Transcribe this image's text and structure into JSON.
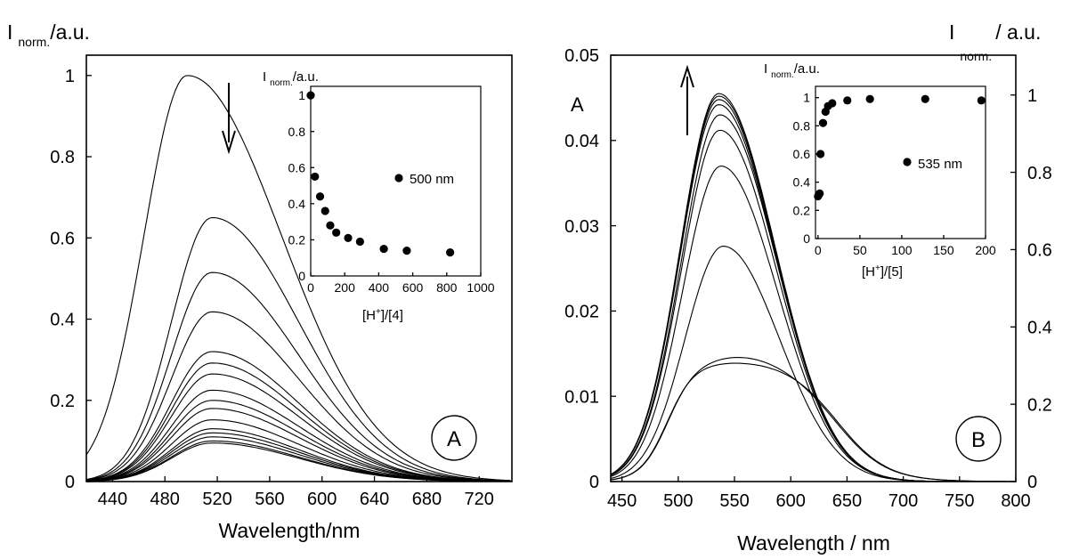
{
  "chart_data": [
    {
      "panel": "A",
      "type": "line",
      "xlabel": "Wavelength/nm",
      "ylabel_main": "I",
      "ylabel_sub": "norm.",
      "ylabel_tail": "/a.u.",
      "xlim": [
        420,
        745
      ],
      "ylim": [
        0,
        1.05
      ],
      "xticks": [
        440,
        480,
        520,
        560,
        600,
        640,
        680,
        720
      ],
      "yticks": [
        0,
        0.2,
        0.4,
        0.6,
        0.8,
        1
      ],
      "ytick_labels": [
        "0",
        "0.2",
        "0.4",
        "0.6",
        "0.8",
        "1"
      ],
      "badge": "A",
      "arrow": "down",
      "series": [
        {
          "peak": 497,
          "peak_y": 1.0,
          "left_width": 33,
          "right_width": 72
        },
        {
          "peak": 516,
          "peak_y": 0.65,
          "left_width": 31,
          "right_width": 66
        },
        {
          "peak": 516,
          "peak_y": 0.515,
          "left_width": 31,
          "right_width": 66
        },
        {
          "peak": 516,
          "peak_y": 0.418,
          "left_width": 31,
          "right_width": 66
        },
        {
          "peak": 516,
          "peak_y": 0.32,
          "left_width": 31,
          "right_width": 66
        },
        {
          "peak": 516,
          "peak_y": 0.292,
          "left_width": 31,
          "right_width": 66
        },
        {
          "peak": 516,
          "peak_y": 0.265,
          "left_width": 31,
          "right_width": 66
        },
        {
          "peak": 516,
          "peak_y": 0.225,
          "left_width": 31,
          "right_width": 66
        },
        {
          "peak": 516,
          "peak_y": 0.2,
          "left_width": 31,
          "right_width": 66
        },
        {
          "peak": 516,
          "peak_y": 0.18,
          "left_width": 31,
          "right_width": 66
        },
        {
          "peak": 516,
          "peak_y": 0.152,
          "left_width": 31,
          "right_width": 66
        },
        {
          "peak": 516,
          "peak_y": 0.13,
          "left_width": 31,
          "right_width": 66
        },
        {
          "peak": 516,
          "peak_y": 0.12,
          "left_width": 31,
          "right_width": 66
        },
        {
          "peak": 516,
          "peak_y": 0.11,
          "left_width": 31,
          "right_width": 66
        },
        {
          "peak": 516,
          "peak_y": 0.1,
          "left_width": 31,
          "right_width": 66
        },
        {
          "peak": 516,
          "peak_y": 0.095,
          "left_width": 31,
          "right_width": 66
        }
      ],
      "inset": {
        "type": "scatter",
        "xlabel_pre": "[H",
        "xlabel_sup": "+",
        "xlabel_post": "]/[4]",
        "ylabel_main": "I",
        "ylabel_sub": "norm.",
        "ylabel_tail": "/a.u.",
        "xlim": [
          0,
          1000
        ],
        "ylim": [
          0,
          1.05
        ],
        "xticks": [
          0,
          200,
          400,
          600,
          800,
          1000
        ],
        "yticks": [
          0,
          0.2,
          0.4,
          0.6,
          0.8,
          1
        ],
        "ytick_labels": [
          "0",
          "0.2",
          "0.4",
          "0.6",
          "0.8",
          "1"
        ],
        "legend": "500 nm",
        "x": [
          0,
          25,
          55,
          85,
          115,
          150,
          220,
          290,
          430,
          565,
          820
        ],
        "y": [
          1.0,
          0.55,
          0.44,
          0.36,
          0.28,
          0.24,
          0.21,
          0.19,
          0.15,
          0.14,
          0.13
        ]
      }
    },
    {
      "panel": "B",
      "type": "line",
      "xlabel": "Wavelength / nm",
      "ylabel_left": "A",
      "ylabel_right_main": "I",
      "ylabel_right_sub": "norm.",
      "ylabel_right_tail": "/ a.u.",
      "xlim": [
        440,
        800
      ],
      "ylim": [
        0,
        0.05
      ],
      "xticks": [
        450,
        500,
        550,
        600,
        650,
        700,
        750,
        800
      ],
      "yticks": [
        0,
        0.01,
        0.02,
        0.03,
        0.04,
        0.05
      ],
      "ytick_labels": [
        "0",
        "0.01",
        "0.02",
        "0.03",
        "0.04",
        "0.05"
      ],
      "y2ticks": [
        0,
        0.2,
        0.4,
        0.6,
        0.8,
        1
      ],
      "y2tick_labels": [
        "0",
        "0.2",
        "0.4",
        "0.6",
        "0.8",
        "1"
      ],
      "badge": "B",
      "arrow": "up",
      "series": [
        {
          "kind": "flat",
          "y_plateau": 0.0138,
          "hump_at": 563,
          "hump_y": 0.0142
        },
        {
          "kind": "flat",
          "y_plateau": 0.0132,
          "hump_at": 558,
          "hump_y": 0.0149
        },
        {
          "kind": "peak",
          "peak": 540,
          "peak_y": 0.0276
        },
        {
          "kind": "peak",
          "peak": 538,
          "peak_y": 0.037
        },
        {
          "kind": "peak",
          "peak": 537,
          "peak_y": 0.0412
        },
        {
          "kind": "peak",
          "peak": 537,
          "peak_y": 0.043
        },
        {
          "kind": "peak",
          "peak": 536,
          "peak_y": 0.0442
        },
        {
          "kind": "peak",
          "peak": 536,
          "peak_y": 0.0448
        },
        {
          "kind": "peak",
          "peak": 536,
          "peak_y": 0.0452
        },
        {
          "kind": "peak",
          "peak": 536,
          "peak_y": 0.0455
        }
      ],
      "inset": {
        "type": "scatter",
        "xlabel_pre": "[H",
        "xlabel_sup": "+",
        "xlabel_post": "]/[5]",
        "ylabel_main": "I",
        "ylabel_sub": "norm.",
        "ylabel_tail": "/a.u.",
        "xlim": [
          -3,
          200
        ],
        "ylim": [
          0,
          1.08
        ],
        "xticks": [
          0,
          50,
          100,
          150,
          200
        ],
        "yticks": [
          0,
          0.2,
          0.4,
          0.6,
          0.8,
          1
        ],
        "ytick_labels": [
          "0",
          "0.2",
          "0.4",
          "0.6",
          "0.8",
          "1"
        ],
        "legend": "535 nm",
        "x": [
          0,
          1,
          2,
          3,
          6,
          9,
          12,
          17,
          35,
          62,
          128,
          195
        ],
        "y": [
          0.3,
          0.31,
          0.32,
          0.6,
          0.82,
          0.9,
          0.94,
          0.96,
          0.98,
          0.99,
          0.99,
          0.98
        ]
      }
    }
  ]
}
